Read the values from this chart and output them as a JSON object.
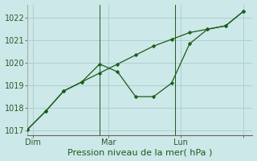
{
  "background_color": "#cce8e8",
  "grid_color": "#aacccc",
  "line_color": "#1a5c1a",
  "marker_color": "#1a5c1a",
  "xlabel": "Pression niveau de la mer( hPa )",
  "ylim": [
    1016.8,
    1022.6
  ],
  "yticks": [
    1017,
    1018,
    1019,
    1020,
    1021,
    1022
  ],
  "xlim": [
    0,
    12.5
  ],
  "smooth_x": [
    0,
    1,
    2,
    3,
    4,
    5,
    6,
    7,
    8,
    9,
    10,
    11,
    12
  ],
  "smooth_y": [
    1017.05,
    1017.85,
    1018.75,
    1019.15,
    1019.55,
    1019.95,
    1020.35,
    1020.75,
    1021.05,
    1021.35,
    1021.5,
    1021.65,
    1022.3
  ],
  "jagged_x": [
    0,
    1,
    2,
    3,
    4,
    5,
    6,
    7,
    8,
    9,
    10,
    11,
    12
  ],
  "jagged_y": [
    1017.05,
    1017.85,
    1018.75,
    1019.15,
    1019.95,
    1019.6,
    1018.5,
    1018.5,
    1019.1,
    1020.85,
    1021.5,
    1021.65,
    1022.3
  ],
  "xtick_positions": [
    0.3,
    4.5,
    8.5,
    12.0
  ],
  "xtick_labels": [
    "Dim",
    "Mar",
    "Lun",
    ""
  ],
  "vline_positions": [
    4.0,
    8.2
  ],
  "font_size_axis": 7,
  "font_size_label": 8
}
